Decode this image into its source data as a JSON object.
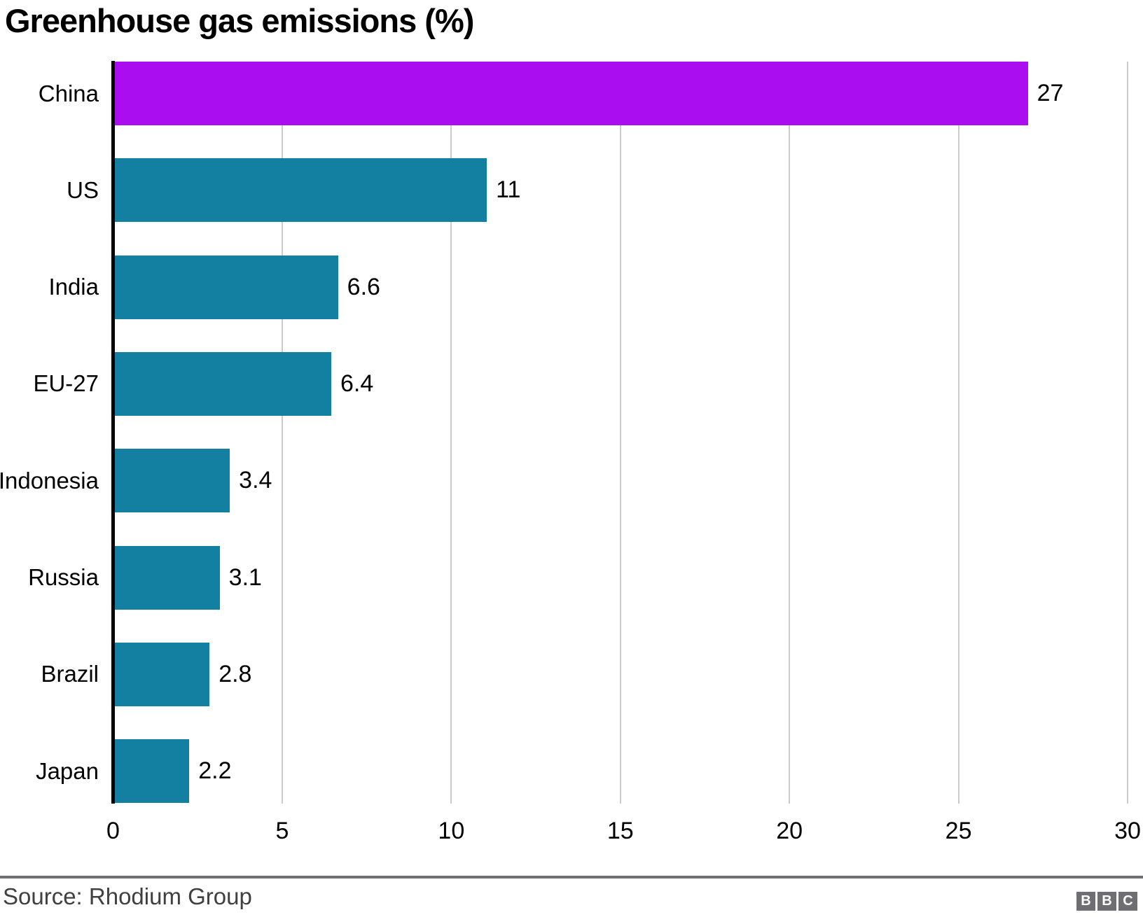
{
  "title": "Greenhouse gas emissions (%)",
  "source": "Source: Rhodium Group",
  "logo": {
    "letters": [
      "B",
      "B",
      "C"
    ]
  },
  "colors": {
    "highlight_bar": "#AB0DF1",
    "default_bar": "#1380A1",
    "gridline": "#CBCBCB",
    "axis_line": "#000000",
    "divider": "#6E6E73",
    "source_text": "#404040",
    "logo_bg": "#6E6E73",
    "logo_letter": "#FFFFFF",
    "text": "#000000"
  },
  "chart_data": {
    "type": "bar",
    "orientation": "horizontal",
    "title": "Greenhouse gas emissions (%)",
    "xlabel": "",
    "ylabel": "",
    "categories": [
      "China",
      "US",
      "India",
      "EU-27",
      "Indonesia",
      "Russia",
      "Brazil",
      "Japan"
    ],
    "values": [
      27,
      11,
      6.6,
      6.4,
      3.4,
      3.1,
      2.8,
      2.2
    ],
    "value_labels": [
      "27",
      "11",
      "6.6",
      "6.4",
      "3.4",
      "3.1",
      "2.8",
      "2.2"
    ],
    "bar_colors": [
      "#AB0DF1",
      "#1380A1",
      "#1380A1",
      "#1380A1",
      "#1380A1",
      "#1380A1",
      "#1380A1",
      "#1380A1"
    ],
    "xlim": [
      0,
      30
    ],
    "xticks": [
      0,
      5,
      10,
      15,
      20,
      25,
      30
    ],
    "xtick_labels": [
      "0",
      "5",
      "10",
      "15",
      "20",
      "25",
      "30"
    ],
    "grid": true,
    "legend": false,
    "annotation_note": "value labels shown at end of each bar; China bar highlighted in purple"
  }
}
